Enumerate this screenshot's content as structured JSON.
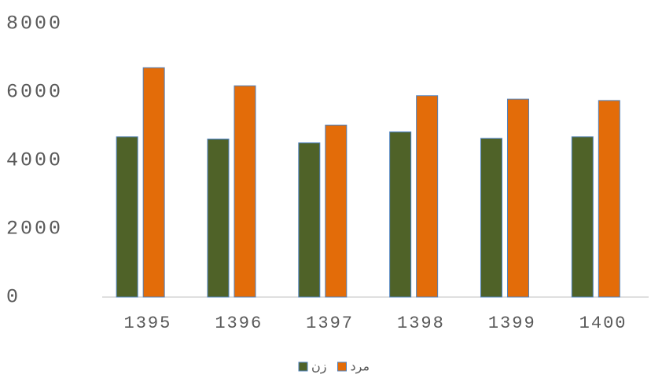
{
  "chart_data": {
    "type": "bar",
    "categories": [
      "1395",
      "1396",
      "1397",
      "1398",
      "1399",
      "1400"
    ],
    "series": [
      {
        "name": "زن",
        "color": "#4f6228",
        "values": [
          4690,
          4620,
          4510,
          4830,
          4640,
          4690
        ]
      },
      {
        "name": "مرد",
        "color": "#e36c09",
        "values": [
          6710,
          6180,
          5030,
          5890,
          5790,
          5750
        ]
      }
    ],
    "ylim": [
      0,
      8000
    ],
    "yticks": [
      0,
      2000,
      4000,
      6000,
      8000
    ],
    "grid": false,
    "legend": "bottom"
  }
}
